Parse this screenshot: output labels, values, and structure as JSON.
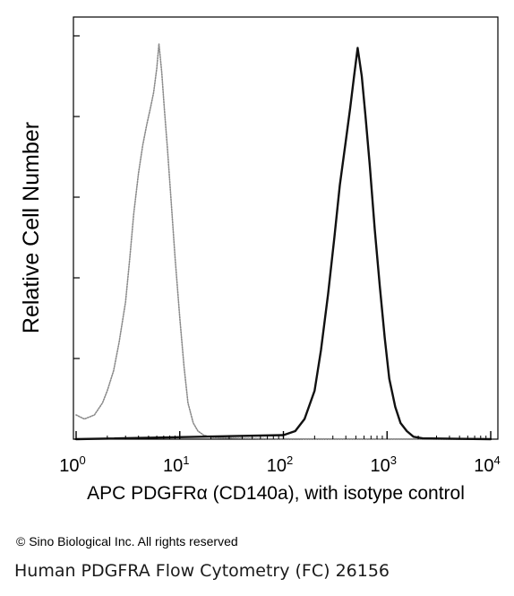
{
  "chart_data": {
    "type": "line",
    "title": "",
    "xlabel": "APC PDGFRα (CD140a), with isotype control",
    "ylabel": "Relative Cell Number",
    "x_scale": "log",
    "xlim": [
      1,
      10000
    ],
    "ylim": [
      0,
      100
    ],
    "x_ticks": [
      {
        "base": "10",
        "exp": "0",
        "value": 1
      },
      {
        "base": "10",
        "exp": "1",
        "value": 10
      },
      {
        "base": "10",
        "exp": "2",
        "value": 100
      },
      {
        "base": "10",
        "exp": "3",
        "value": 1000
      },
      {
        "base": "10",
        "exp": "4",
        "value": 10000
      }
    ],
    "grid": false,
    "legend": "none",
    "series": [
      {
        "style": "dotted-gray",
        "color": "#8a8a8a",
        "x": [
          1.0,
          1.2,
          1.5,
          1.8,
          2.0,
          2.3,
          2.6,
          3.0,
          3.3,
          3.6,
          4.0,
          4.4,
          4.8,
          5.2,
          5.6,
          6.0,
          6.3,
          6.7,
          7.1,
          7.6,
          8.2,
          9.0,
          10.0,
          11.0,
          12.0,
          13.5,
          15.0,
          17.0,
          20.0,
          25.0,
          40.0,
          100.0,
          10000.0
        ],
        "y": [
          6,
          5,
          6,
          9,
          12,
          17,
          24,
          34,
          45,
          56,
          66,
          73,
          78,
          82,
          86,
          92,
          98,
          91,
          82,
          72,
          60,
          45,
          30,
          18,
          9,
          4,
          2,
          1,
          0.5,
          0.3,
          0.2,
          0.1,
          0
        ]
      },
      {
        "style": "solid-black",
        "color": "#111111",
        "x": [
          1.0,
          100.0,
          130.0,
          160.0,
          200.0,
          230.0,
          270.0,
          310.0,
          350.0,
          400.0,
          440.0,
          480.0,
          520.0,
          570.0,
          620.0,
          680.0,
          760.0,
          850.0,
          950.0,
          1050.0,
          1200.0,
          1350.0,
          1550.0,
          1800.0,
          2200.0,
          10000.0
        ],
        "y": [
          0,
          1,
          2,
          5,
          12,
          22,
          36,
          50,
          63,
          74,
          82,
          90,
          97,
          90,
          80,
          68,
          52,
          38,
          25,
          15,
          8,
          4,
          2,
          0.6,
          0.2,
          0
        ]
      }
    ]
  },
  "footer": {
    "copyright": "© Sino Biological Inc. All rights reserved",
    "caption": "Human PDGFRA Flow Cytometry (FC) 26156"
  }
}
